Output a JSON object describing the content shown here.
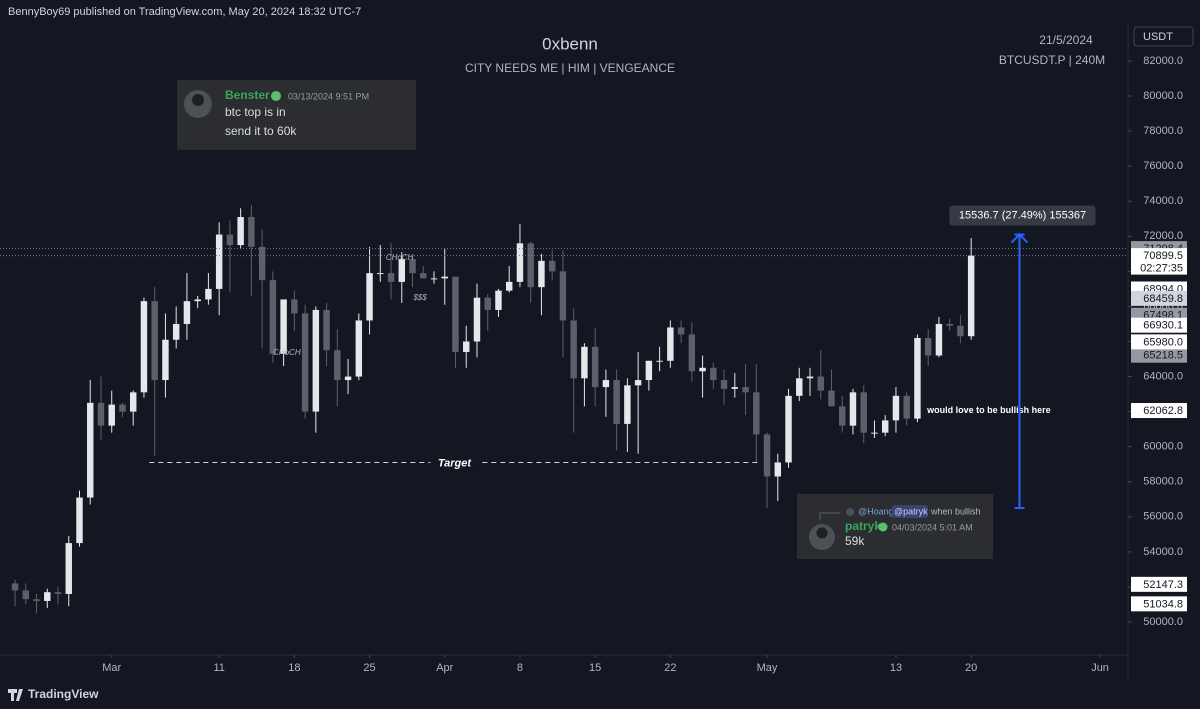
{
  "header": {
    "text": "BennyBoy69 published on TradingView.com, May 20, 2024 18:32 UTC-7"
  },
  "footer": {
    "brand": "TradingView"
  },
  "messages": [
    {
      "user": "Benster",
      "time": "03/13/2024 9:51 PM",
      "lines": [
        "btc top is in",
        "send it to 60k"
      ]
    },
    {
      "reply_to": "@Hoang",
      "reply_text": [
        "@patryk",
        "when bullish"
      ],
      "user": "patryk",
      "time": "04/03/2024 5:01 AM",
      "lines": [
        "59k"
      ]
    }
  ],
  "chart_data": {
    "type": "candlestick",
    "title": "0xbenn",
    "subtitle": "CITY NEEDS ME  |  HIM |  VENGEANCE",
    "date": "21/5/2024",
    "symbol": "BTCUSDT.P | 240M",
    "currency": "USDT",
    "up_color": "#e6e7eb",
    "down_color": "#5d606b",
    "grid": false,
    "xlim": [
      50.6,
      155.6
    ],
    "xticks": [
      {
        "value": 61,
        "label": "Mar"
      },
      {
        "value": 71,
        "label": "11"
      },
      {
        "value": 78,
        "label": "18"
      },
      {
        "value": 85,
        "label": "25"
      },
      {
        "value": 92,
        "label": "Apr"
      },
      {
        "value": 99,
        "label": "8"
      },
      {
        "value": 106,
        "label": "15"
      },
      {
        "value": 113,
        "label": "22"
      },
      {
        "value": 122,
        "label": "May"
      },
      {
        "value": 134,
        "label": "13"
      },
      {
        "value": 141,
        "label": "20"
      },
      {
        "value": 153,
        "label": "Jun"
      }
    ],
    "ylim": [
      48117,
      84225
    ],
    "yticks": [
      {
        "value": 50000,
        "label": "50000.0"
      },
      {
        "value": 52000,
        "label": "52000.0"
      },
      {
        "value": 54000,
        "label": "54000.0"
      },
      {
        "value": 56000,
        "label": "56000.0"
      },
      {
        "value": 58000,
        "label": "58000.0"
      },
      {
        "value": 60000,
        "label": "60000.0"
      },
      {
        "value": 62000,
        "label": "62000.0"
      },
      {
        "value": 64000,
        "label": "64000.0"
      },
      {
        "value": 66000,
        "label": "66000.0"
      },
      {
        "value": 68000,
        "label": "68000.0"
      },
      {
        "value": 70000,
        "label": "70000.0"
      },
      {
        "value": 72000,
        "label": "72000.0"
      },
      {
        "value": 74000,
        "label": "74000.0"
      },
      {
        "value": 76000,
        "label": "76000.0"
      },
      {
        "value": 78000,
        "label": "78000.0"
      },
      {
        "value": 80000,
        "label": "80000.0"
      },
      {
        "value": 82000,
        "label": "82000.0"
      }
    ],
    "x": [
      52,
      53,
      54,
      55,
      56,
      57,
      58,
      59,
      60,
      61,
      62,
      63,
      64,
      65,
      66,
      67,
      68,
      69,
      70,
      71,
      72,
      73,
      74,
      75,
      76,
      77,
      78,
      79,
      80,
      81,
      82,
      83,
      84,
      85,
      86,
      87,
      88,
      89,
      90,
      91,
      92,
      93,
      94,
      95,
      96,
      97,
      98,
      99,
      100,
      101,
      102,
      103,
      104,
      105,
      106,
      107,
      108,
      109,
      110,
      111,
      112,
      113,
      114,
      115,
      116,
      117,
      118,
      119,
      120,
      121,
      122,
      123,
      124,
      125,
      126,
      127,
      128,
      129,
      130,
      131,
      132,
      133,
      134,
      135,
      136,
      137,
      138,
      139,
      140,
      141
    ],
    "open": [
      52200,
      51800,
      51300,
      51200,
      51700,
      51600,
      54500,
      57100,
      62500,
      61200,
      62400,
      62000,
      63100,
      68300,
      63800,
      66100,
      67000,
      68300,
      68400,
      69000,
      72100,
      71500,
      73100,
      71400,
      69500,
      65300,
      68400,
      67600,
      62000,
      67800,
      65500,
      63800,
      64000,
      67200,
      69900,
      69900,
      69400,
      70700,
      69900,
      69600,
      69600,
      69700,
      65400,
      66000,
      68500,
      67800,
      68900,
      69400,
      71600,
      69100,
      70600,
      70000,
      67200,
      63900,
      65700,
      63400,
      63800,
      61300,
      63500,
      63800,
      64900,
      64900,
      66800,
      66400,
      64300,
      64500,
      63800,
      63300,
      63400,
      63100,
      60700,
      58300,
      59100,
      62900,
      63900,
      64000,
      63200,
      62300,
      61200,
      63100,
      60800,
      60800,
      61500,
      62900,
      61600,
      66200,
      65200,
      67000,
      66900,
      66300
    ],
    "high": [
      52400,
      52200,
      51600,
      51900,
      52000,
      54900,
      57500,
      63800,
      64000,
      63200,
      62500,
      63200,
      68500,
      69100,
      67600,
      68000,
      69900,
      68600,
      69900,
      72800,
      72900,
      73600,
      73800,
      72400,
      70000,
      68300,
      68900,
      68100,
      68000,
      68200,
      66700,
      65000,
      67600,
      71400,
      71500,
      71600,
      71100,
      70900,
      70300,
      70000,
      71300,
      69700,
      66900,
      69300,
      68700,
      69000,
      70300,
      72700,
      71700,
      71000,
      71200,
      71200,
      67900,
      65900,
      66800,
      64400,
      64400,
      63900,
      65400,
      64900,
      65700,
      67200,
      67200,
      67100,
      65200,
      64800,
      64400,
      64200,
      64700,
      64700,
      60800,
      59600,
      63300,
      64500,
      64500,
      65500,
      64400,
      62900,
      63300,
      63500,
      61500,
      61800,
      63400,
      63100,
      66400,
      66700,
      67400,
      67300,
      67500,
      71900
    ],
    "low": [
      50900,
      51000,
      50500,
      50800,
      51000,
      50900,
      54300,
      56700,
      60400,
      60800,
      61700,
      61200,
      62800,
      59500,
      62800,
      65600,
      66100,
      67900,
      68100,
      67500,
      68800,
      71300,
      68600,
      65600,
      64800,
      64600,
      66600,
      61600,
      60800,
      64600,
      62300,
      63000,
      63800,
      66400,
      69400,
      68400,
      68200,
      69100,
      69600,
      69300,
      68100,
      64500,
      64500,
      65100,
      66600,
      67400,
      68800,
      69100,
      68200,
      67500,
      69500,
      65100,
      60800,
      62300,
      62300,
      61700,
      59800,
      59700,
      59600,
      63200,
      64300,
      64500,
      65900,
      63700,
      62800,
      63300,
      62400,
      62800,
      61800,
      59100,
      56500,
      56900,
      58800,
      62600,
      62900,
      62700,
      62300,
      60800,
      60700,
      60200,
      60500,
      60600,
      60800,
      61200,
      61400,
      64600,
      65100,
      66600,
      65900,
      66100
    ],
    "close": [
      51800,
      51300,
      51200,
      51700,
      51600,
      54500,
      57100,
      62500,
      61200,
      62400,
      62000,
      63100,
      68300,
      63800,
      66100,
      67000,
      68300,
      68400,
      69000,
      72100,
      71500,
      73100,
      71400,
      69500,
      65300,
      68400,
      67600,
      62000,
      67800,
      65500,
      63800,
      64000,
      67200,
      69900,
      69900,
      69400,
      70700,
      69900,
      69600,
      69600,
      69700,
      65400,
      66000,
      68500,
      67800,
      68900,
      69400,
      71600,
      69100,
      70600,
      70000,
      67200,
      63900,
      65700,
      63400,
      63800,
      61300,
      63500,
      63800,
      64900,
      64900,
      66800,
      66400,
      64300,
      64500,
      63800,
      63300,
      63400,
      63100,
      60700,
      58300,
      59100,
      62900,
      63900,
      64000,
      63200,
      62300,
      61200,
      63100,
      60800,
      60800,
      61500,
      62900,
      61600,
      66200,
      65200,
      67000,
      66900,
      66300,
      70900
    ],
    "price_tags": [
      {
        "value": 71298.4,
        "label": "71298.4",
        "color": "#9598a1",
        "dotted": true
      },
      {
        "value": 70899.5,
        "label": "70899.5",
        "color": "#ffffff",
        "dotted": true
      },
      {
        "value": 68994.0,
        "label": "68994.0",
        "color": "#ffffff"
      },
      {
        "value": 68459.8,
        "label": "68459.8",
        "color": "#d1d4dc"
      },
      {
        "value": 67498.1,
        "label": "67498.1",
        "color": "#9598a1"
      },
      {
        "value": 66930.1,
        "label": "66930.1",
        "color": "#ffffff"
      },
      {
        "value": 65218.5,
        "label": "65218.5",
        "color": "#9598a1"
      },
      {
        "value": 65980.0,
        "label": "65980.0",
        "color": "#ffffff"
      },
      {
        "value": 62062.8,
        "label": "62062.8",
        "color": "#ffffff"
      },
      {
        "value": 52147.3,
        "label": "52147.3",
        "color": "#ffffff"
      },
      {
        "value": 51034.8,
        "label": "51034.8",
        "color": "#ffffff"
      }
    ],
    "countdown": "02:27:35",
    "target": {
      "label": "Target",
      "value": 59100,
      "x": [
        64.5,
        121.3
      ]
    },
    "measure": {
      "label": "15536.7 (27.49%) 155367",
      "x": 145.5,
      "from": 56500,
      "to": 72100,
      "color": "#2962ff"
    },
    "annotations": [
      {
        "text": "$$$",
        "x": 89.7,
        "y": 68480
      },
      {
        "text": "CHoCH",
        "x": 77.3,
        "y": 65350
      },
      {
        "text": "CHoCH",
        "x": 87.8,
        "y": 70760
      },
      {
        "text": "would love to be bullish here",
        "x": 136.9,
        "y": 62060
      }
    ]
  }
}
